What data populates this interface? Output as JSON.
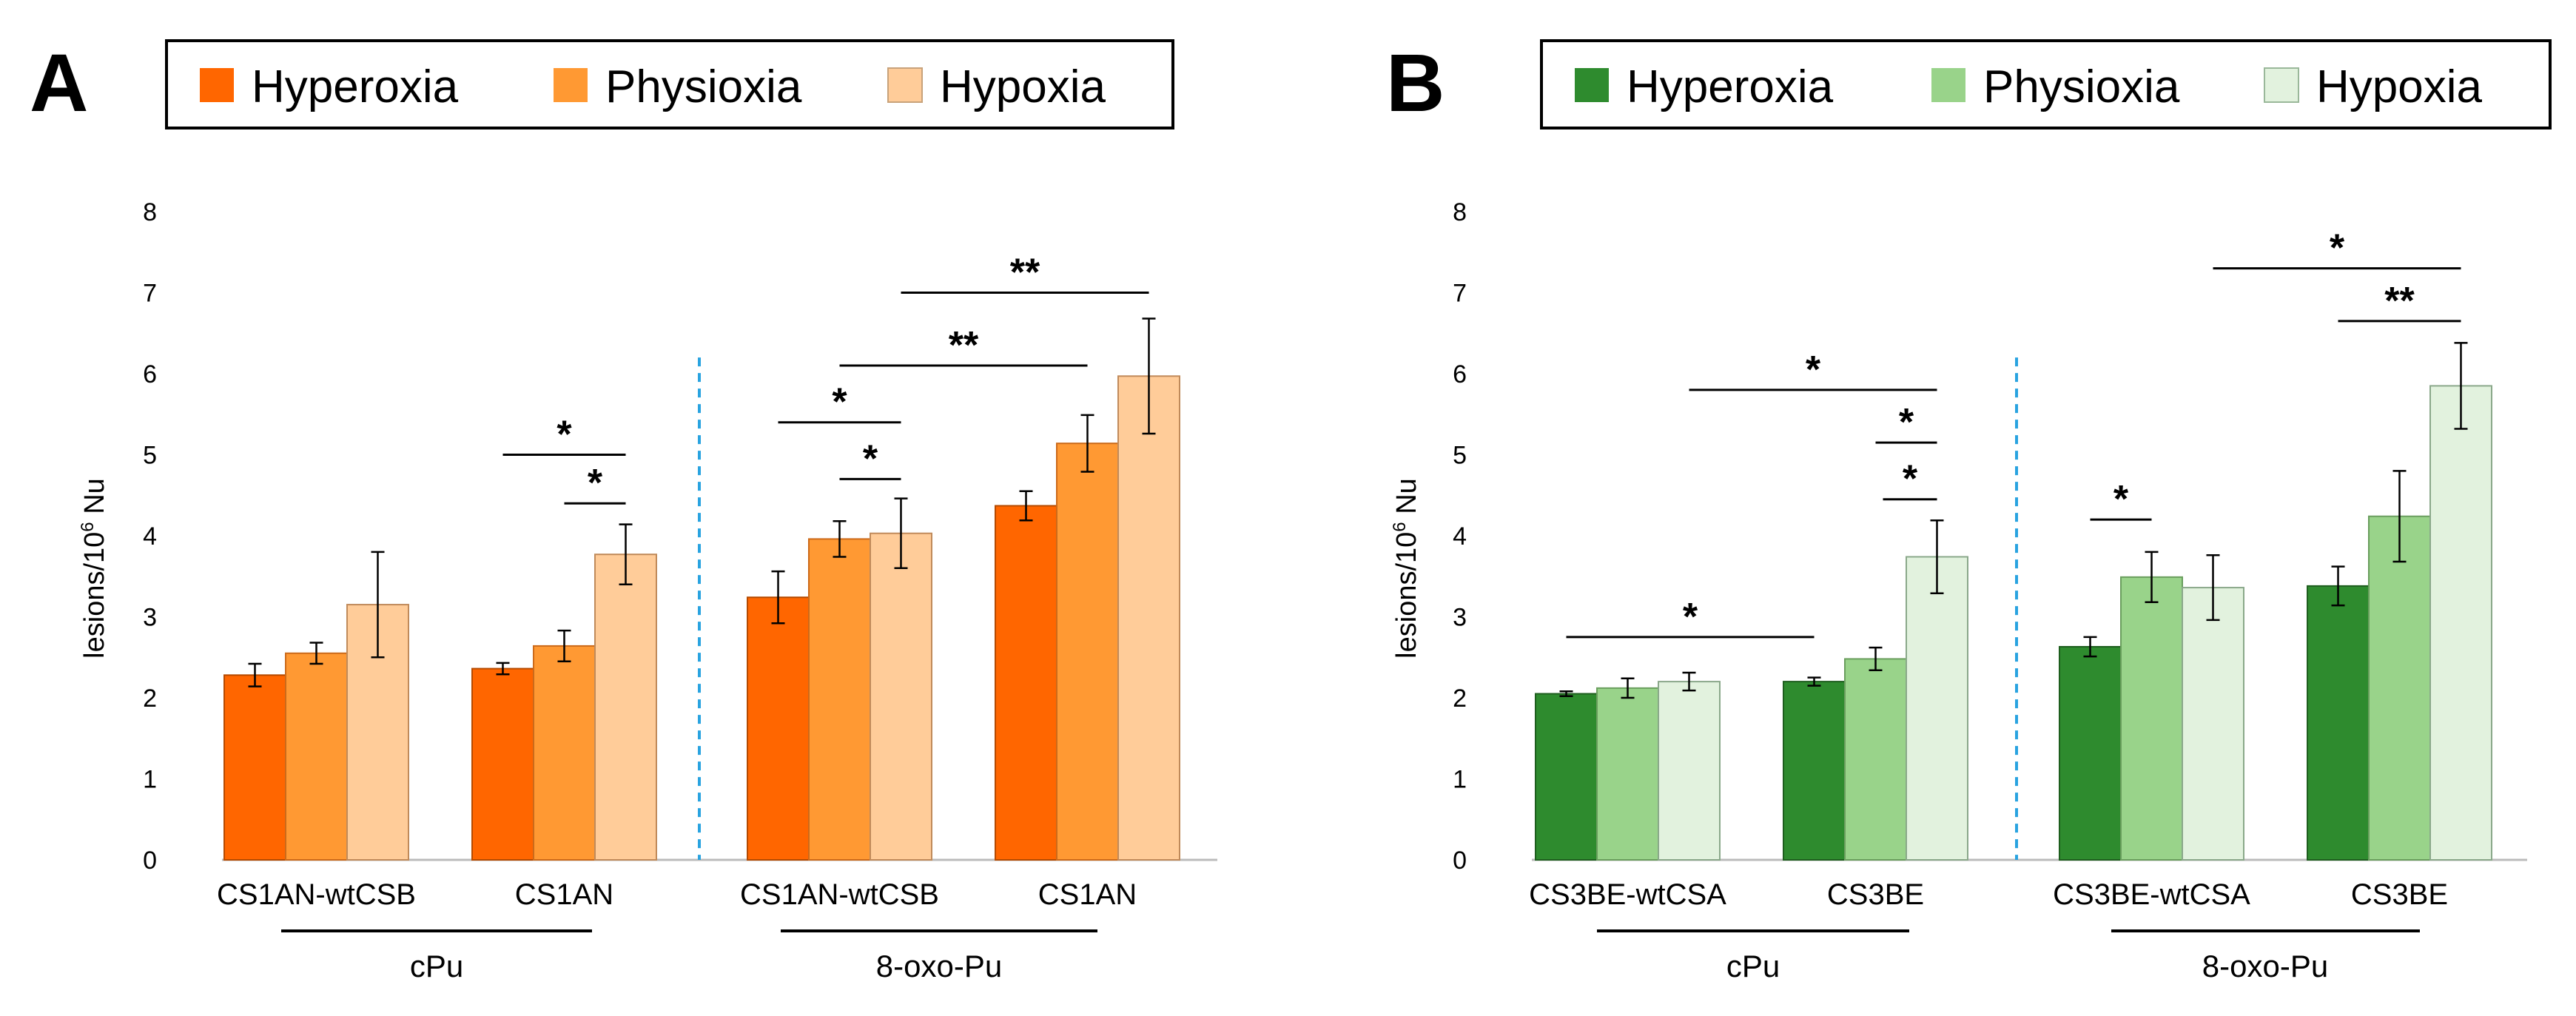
{
  "chart_data": [
    {
      "type": "bar",
      "panel": "A",
      "ylabel": "lesions/10",
      "ylabel_sup": "6",
      "ylabel_tail": " Nu",
      "ylim": [
        0,
        8
      ],
      "yticks": [
        "0",
        "1",
        "2",
        "3",
        "4",
        "5",
        "6",
        "7",
        "8"
      ],
      "colors": [
        "#ff6600",
        "#ff9933",
        "#ffcc99"
      ],
      "legend": [
        "Hyperoxia",
        "Physioxia",
        "Hypoxia"
      ],
      "categories": [
        "CS1AN-wtCSB",
        "CS1AN",
        "CS1AN-wtCSB",
        "CS1AN"
      ],
      "groups": [
        "cPu",
        "8-oxo-Pu"
      ],
      "series": [
        {
          "name": "Hyperoxia",
          "values": [
            2.28,
            2.36,
            3.24,
            4.37
          ],
          "errors": [
            0.14,
            0.07,
            0.32,
            0.18
          ]
        },
        {
          "name": "Physioxia",
          "values": [
            2.55,
            2.64,
            3.96,
            5.14
          ],
          "errors": [
            0.13,
            0.19,
            0.22,
            0.35
          ]
        },
        {
          "name": "Hypoxia",
          "values": [
            3.15,
            3.77,
            4.03,
            5.97
          ],
          "errors": [
            0.65,
            0.37,
            0.43,
            0.71
          ]
        }
      ],
      "significance": [
        {
          "label": "*",
          "from": [
            1,
            0
          ],
          "to": [
            1,
            2
          ],
          "y": 5.0
        },
        {
          "label": "*",
          "from": [
            1,
            1
          ],
          "to": [
            1,
            2
          ],
          "y": 4.4
        },
        {
          "label": "*",
          "from": [
            2,
            0
          ],
          "to": [
            2,
            2
          ],
          "y": 5.4
        },
        {
          "label": "*",
          "from": [
            2,
            1
          ],
          "to": [
            2,
            2
          ],
          "y": 4.7
        },
        {
          "label": "**",
          "from": [
            2,
            1
          ],
          "to": [
            3,
            1
          ],
          "y": 6.1
        },
        {
          "label": "**",
          "from": [
            2,
            2
          ],
          "to": [
            3,
            2
          ],
          "y": 7.0
        }
      ]
    },
    {
      "type": "bar",
      "panel": "B",
      "ylabel": "lesions/10",
      "ylabel_sup": "6",
      "ylabel_tail": " Nu",
      "ylim": [
        0,
        8
      ],
      "yticks": [
        "0",
        "1",
        "2",
        "3",
        "4",
        "5",
        "6",
        "7",
        "8"
      ],
      "colors": [
        "#2e8b2e",
        "#99d38a",
        "#e2f2de"
      ],
      "legend": [
        "Hyperoxia",
        "Physioxia",
        "Hypoxia"
      ],
      "categories": [
        "CS3BE-wtCSA",
        "CS3BE",
        "CS3BE-wtCSA",
        "CS3BE"
      ],
      "groups": [
        "cPu",
        "8-oxo-Pu"
      ],
      "series": [
        {
          "name": "Hyperoxia",
          "values": [
            2.05,
            2.2,
            2.63,
            3.38
          ],
          "errors": [
            0.03,
            0.05,
            0.12,
            0.24
          ]
        },
        {
          "name": "Physioxia",
          "values": [
            2.12,
            2.48,
            3.49,
            4.24
          ],
          "errors": [
            0.12,
            0.14,
            0.31,
            0.56
          ]
        },
        {
          "name": "Hypoxia",
          "values": [
            2.2,
            3.74,
            3.36,
            5.85
          ],
          "errors": [
            0.11,
            0.45,
            0.4,
            0.53
          ]
        }
      ],
      "significance": [
        {
          "label": "*",
          "from": [
            0,
            0
          ],
          "to": [
            1,
            0
          ],
          "y": 2.75
        },
        {
          "label": "*",
          "from": [
            1,
            2
          ],
          "to": [
            1,
            2
          ],
          "y": 4.45,
          "short": true
        },
        {
          "label": "*",
          "from": [
            1,
            1
          ],
          "to": [
            1,
            2
          ],
          "y": 5.15
        },
        {
          "label": "*",
          "from": [
            0,
            2
          ],
          "to": [
            1,
            2
          ],
          "y": 5.8
        },
        {
          "label": "*",
          "from": [
            2,
            0
          ],
          "to": [
            2,
            1
          ],
          "y": 4.2
        },
        {
          "label": "**",
          "from": [
            3,
            0
          ],
          "to": [
            3,
            2
          ],
          "y": 6.65
        },
        {
          "label": "*",
          "from": [
            2,
            2
          ],
          "to": [
            3,
            2
          ],
          "y": 7.3
        }
      ]
    }
  ]
}
